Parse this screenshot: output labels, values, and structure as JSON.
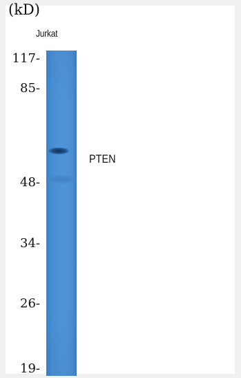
{
  "unit_label": "(kD)",
  "lane_label": "Jurkat",
  "markers": [
    "117-",
    "85-",
    "48-",
    "34-",
    "26-",
    "19-"
  ],
  "band_label": "PTEN",
  "colors": {
    "lane": "#4e95d8",
    "band": "#1f4f86",
    "background": "#f1f1f1"
  }
}
